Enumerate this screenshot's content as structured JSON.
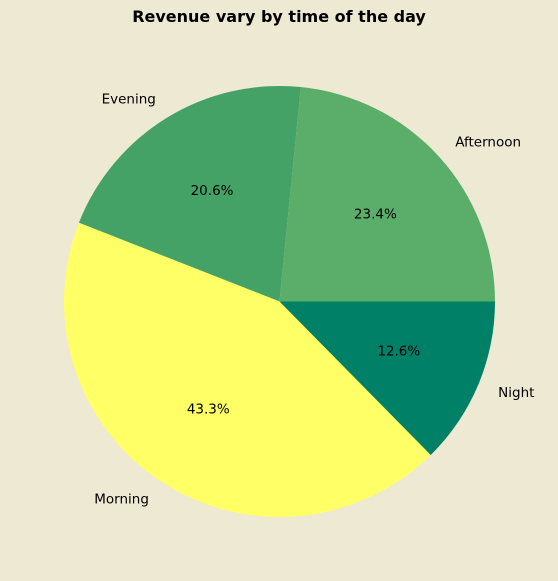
{
  "chart_data": {
    "type": "pie",
    "title": "Revenue vary by time of the day",
    "slices": [
      {
        "label": "Afternoon",
        "value": 23.4,
        "pct_label": "23.4%",
        "color": "#5AAE69"
      },
      {
        "label": "Evening",
        "value": 20.6,
        "pct_label": "20.6%",
        "color": "#44A267"
      },
      {
        "label": "Morning",
        "value": 43.3,
        "pct_label": "43.3%",
        "color": "#FFFF66"
      },
      {
        "label": "Night",
        "value": 12.6,
        "pct_label": "12.6%",
        "color": "#008066"
      }
    ],
    "start_angle_deg": 0,
    "direction": "counterclockwise",
    "legend": "none",
    "background": "#EEE9D2"
  }
}
